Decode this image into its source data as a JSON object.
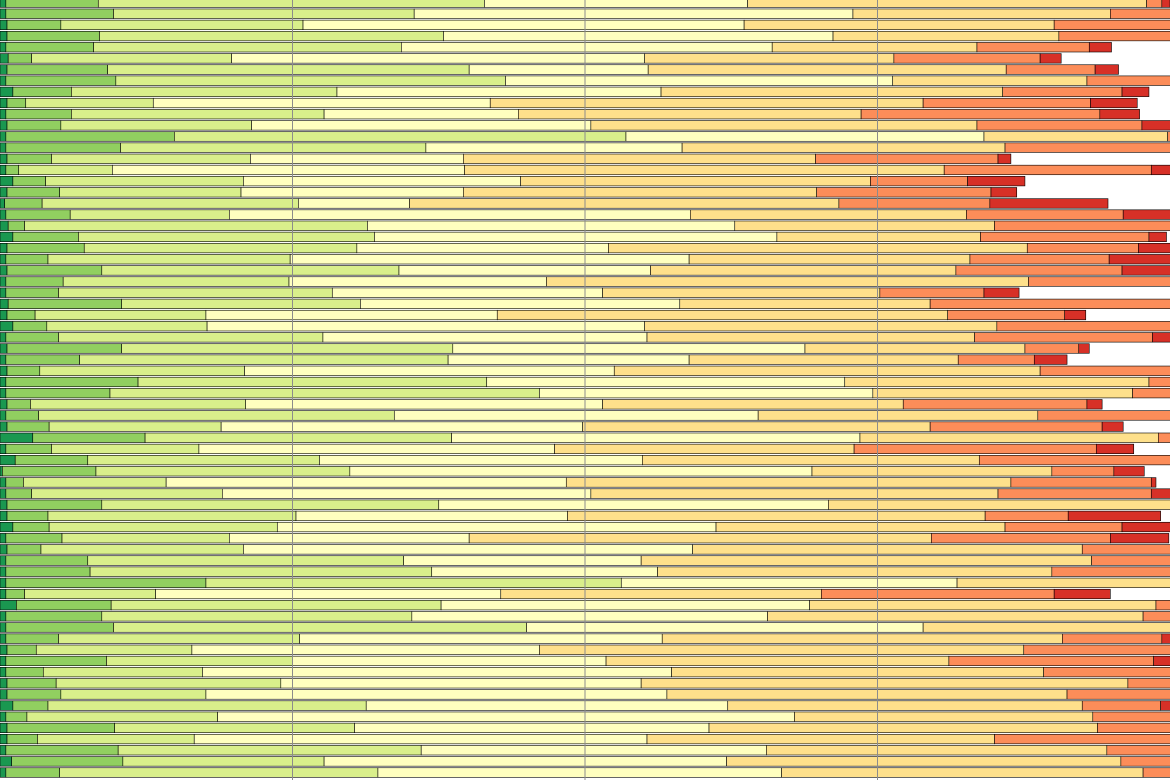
{
  "chart_data": {
    "type": "bar",
    "orientation": "horizontal",
    "stacked": true,
    "normalized": true,
    "title": "",
    "xlabel": "",
    "ylabel": "",
    "xlim": [
      0,
      100
    ],
    "xgrid_values": [
      25,
      50,
      75
    ],
    "grid": true,
    "legend": "none",
    "colors": [
      "#1a9850",
      "#91cf60",
      "#d9ef8b",
      "#ffffbf",
      "#fee08b",
      "#fc8d59",
      "#d73027"
    ],
    "series": [
      {
        "name": "",
        "values": [
          0.5,
          0.5,
          0.6,
          0.6,
          0.5,
          0.7,
          0.6,
          0.5,
          1.1,
          0.6,
          0.5,
          0.6,
          0.5,
          0.5,
          0.6,
          0.5,
          1.1,
          0.6,
          0.4,
          0.5,
          0.7,
          1.1,
          0.6,
          0.5,
          0.6,
          0.5,
          0.5,
          0.7,
          0.6,
          1.1,
          0.5,
          0.6,
          0.5,
          0.6,
          0.5,
          0.5,
          0.6,
          0.5,
          0.6,
          2.8,
          0.5,
          1.3,
          0.2,
          0.5,
          0.5,
          0.6,
          0.6,
          1.1,
          0.5,
          0.6,
          0.5,
          0.5,
          0.5,
          0.5,
          1.4,
          0.5,
          0.5,
          0.5,
          0.6,
          0.5,
          0.5,
          0.6,
          0.6,
          1.1,
          0.5,
          0.6,
          0.6,
          0.5,
          1.0,
          0.5
        ]
      },
      {
        "name": "",
        "values": [
          7.9,
          9.2,
          4.6,
          7.9,
          7.5,
          2.0,
          8.6,
          9.4,
          5.0,
          1.6,
          5.6,
          4.6,
          14.4,
          9.8,
          3.8,
          1.1,
          2.8,
          4.5,
          3.2,
          5.5,
          1.4,
          5.6,
          6.6,
          3.6,
          8.1,
          4.9,
          4.5,
          9.7,
          2.4,
          2.9,
          4.5,
          9.8,
          6.3,
          2.8,
          11.3,
          8.9,
          2.0,
          2.8,
          3.6,
          9.6,
          3.9,
          6.2,
          8.0,
          1.5,
          2.2,
          8.1,
          3.5,
          3.1,
          4.8,
          2.9,
          7.0,
          7.2,
          17.1,
          1.6,
          8.1,
          8.2,
          9.2,
          4.5,
          2.5,
          8.6,
          3.2,
          4.2,
          4.6,
          3.0,
          1.8,
          9.2,
          2.6,
          9.6,
          9.5,
          4.6
        ]
      },
      {
        "name": "",
        "values": [
          33.0,
          25.7,
          20.7,
          29.4,
          26.3,
          17.1,
          30.9,
          33.3,
          22.7,
          10.9,
          21.6,
          16.3,
          38.6,
          26.1,
          17.0,
          8.0,
          16.9,
          15.5,
          21.9,
          13.6,
          29.3,
          25.3,
          23.3,
          20.7,
          25.4,
          19.3,
          23.4,
          20.4,
          14.6,
          13.7,
          22.6,
          28.3,
          31.5,
          17.5,
          29.8,
          36.7,
          18.4,
          30.4,
          14.7,
          26.2,
          12.6,
          19.8,
          21.7,
          12.2,
          16.3,
          28.8,
          21.2,
          19.5,
          14.3,
          17.3,
          27.0,
          29.2,
          35.5,
          11.2,
          28.2,
          26.5,
          35.3,
          20.6,
          13.3,
          15.9,
          13.6,
          19.2,
          12.4,
          27.2,
          16.3,
          20.5,
          13.4,
          25.9,
          17.2,
          27.2
        ]
      },
      {
        "name": "",
        "values": [
          22.5,
          37.5,
          37.7,
          33.3,
          31.7,
          35.3,
          15.3,
          33.1,
          27.7,
          28.8,
          16.6,
          29.0,
          30.6,
          21.9,
          18.2,
          30.1,
          23.7,
          19.0,
          9.5,
          39.4,
          31.4,
          34.4,
          21.5,
          34.1,
          21.5,
          22.0,
          23.1,
          27.3,
          24.9,
          37.4,
          27.7,
          30.1,
          20.6,
          31.6,
          30.6,
          28.5,
          30.5,
          31.1,
          30.9,
          34.9,
          30.4,
          27.6,
          39.5,
          34.2,
          31.5,
          33.3,
          23.2,
          37.5,
          20.5,
          38.4,
          20.3,
          19.3,
          28.7,
          29.5,
          31.5,
          30.4,
          33.9,
          31.0,
          29.7,
          26.8,
          40.1,
          30.8,
          39.4,
          30.9,
          49.3,
          30.3,
          38.7,
          29.5,
          34.4,
          34.5
        ]
      },
      {
        "name": "",
        "values": [
          34.1,
          22.0,
          26.5,
          19.3,
          17.5,
          21.3,
          30.6,
          16.6,
          29.2,
          37.0,
          29.3,
          33.0,
          15.7,
          27.6,
          30.1,
          41.0,
          29.9,
          30.2,
          36.7,
          23.6,
          22.2,
          17.4,
          35.8,
          24.0,
          26.1,
          41.2,
          23.7,
          21.4,
          38.5,
          30.1,
          28.0,
          18.8,
          23.0,
          36.4,
          26.0,
          22.2,
          25.7,
          23.9,
          29.7,
          25.5,
          25.6,
          28.8,
          20.5,
          38.0,
          34.8,
          31.8,
          35.7,
          24.7,
          39.5,
          33.3,
          38.5,
          33.7,
          26.9,
          27.4,
          29.6,
          32.1,
          28.5,
          34.2,
          41.4,
          29.3,
          31.8,
          41.6,
          34.2,
          30.3,
          25.5,
          33.2,
          29.7,
          29.1,
          33.7,
          30.9
        ]
      },
      {
        "name": "",
        "values": [
          1.3,
          11.7,
          12.8,
          10.6,
          9.6,
          12.5,
          7.6,
          11.7,
          10.2,
          14.3,
          20.4,
          14.1,
          9.3,
          16.2,
          15.6,
          17.7,
          8.3,
          14.9,
          12.9,
          13.4,
          26.2,
          14.4,
          9.5,
          11.9,
          14.2,
          18.5,
          8.9,
          21.6,
          10.0,
          16.6,
          15.2,
          4.6,
          6.5,
          20.3,
          16.7,
          6.9,
          15.7,
          19.7,
          14.7,
          13.2,
          20.7,
          16.7,
          5.3,
          12.0,
          13.1,
          7.3,
          7.1,
          10.0,
          15.3,
          16.6,
          15.2,
          14.4,
          7.4,
          19.9,
          9.6,
          9.2,
          8.2,
          8.5,
          17.8,
          17.5,
          20.7,
          12.6,
          11.6,
          6.7,
          22.3,
          14.2,
          17.3,
          17.3,
          8.9,
          9.2
        ]
      },
      {
        "name": "",
        "values": [
          0.7,
          3.4,
          2.1,
          2.1,
          1.9,
          1.8,
          2.0,
          2.4,
          2.3,
          4.0,
          3.4,
          7.3,
          1.1,
          1.7,
          1.1,
          6.2,
          4.9,
          2.2,
          10.1,
          6.2,
          2.2,
          1.5,
          3.1,
          5.5,
          4.6,
          1.8,
          3.0,
          3.1,
          1.8,
          2.7,
          3.8,
          0.9,
          2.8,
          1.3,
          3.4,
          6.6,
          1.3,
          3.0,
          1.8,
          0.9,
          3.2,
          4.4,
          2.6,
          0.4,
          4.8,
          2.6,
          7.9,
          5.2,
          5.0,
          3.8,
          3.6,
          3.5,
          1.0,
          4.8,
          2.2,
          3.6,
          1.8,
          1.1,
          2.1,
          3.6,
          3.9,
          3.0,
          0.3,
          1.2,
          2.7,
          4.2,
          4.6,
          2.3,
          2.2,
          4.1
        ]
      }
    ]
  }
}
